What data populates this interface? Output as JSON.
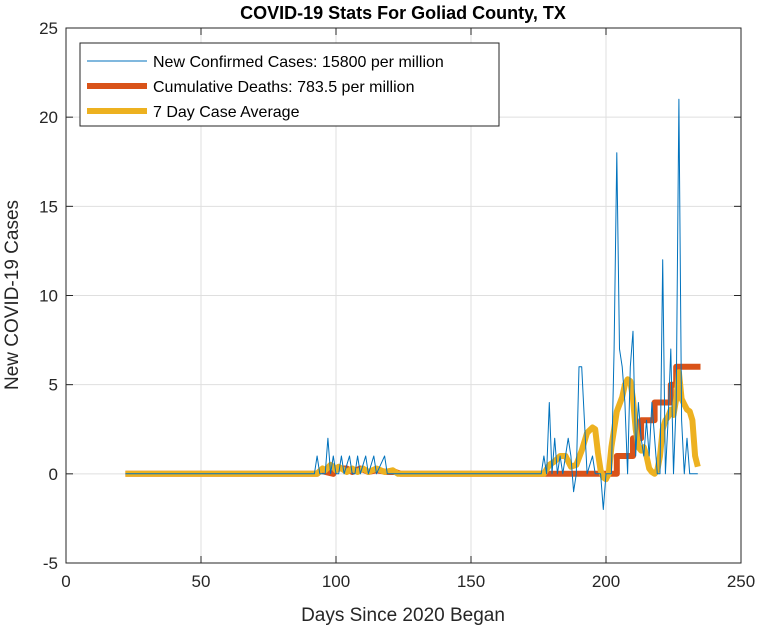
{
  "chart_data": {
    "type": "line",
    "title": "COVID-19 Stats For Goliad County, TX",
    "xlabel": "Days Since 2020 Began",
    "ylabel": "New COVID-19 Cases",
    "xlim": [
      0,
      250
    ],
    "ylim": [
      -5,
      25
    ],
    "xticks": [
      0,
      50,
      100,
      150,
      200,
      250
    ],
    "yticks": [
      -5,
      0,
      5,
      10,
      15,
      20,
      25
    ],
    "grid": true,
    "legend_position": "top-left",
    "series": [
      {
        "name": "New Confirmed Cases: 15800 per million",
        "color": "#0072bd",
        "style": "thin",
        "points": [
          [
            22,
            0
          ],
          [
            92,
            0
          ],
          [
            93,
            1
          ],
          [
            94,
            0
          ],
          [
            96,
            0
          ],
          [
            97,
            2
          ],
          [
            98,
            0
          ],
          [
            99,
            1
          ],
          [
            100,
            0
          ],
          [
            101,
            0
          ],
          [
            102,
            1
          ],
          [
            103,
            0
          ],
          [
            105,
            1
          ],
          [
            106,
            0
          ],
          [
            107,
            0
          ],
          [
            108,
            1
          ],
          [
            109,
            0
          ],
          [
            111,
            1
          ],
          [
            112,
            0
          ],
          [
            114,
            1
          ],
          [
            115,
            0
          ],
          [
            118,
            1
          ],
          [
            119,
            0
          ],
          [
            123,
            0
          ],
          [
            176,
            0
          ],
          [
            177,
            1
          ],
          [
            178,
            0
          ],
          [
            179,
            4
          ],
          [
            180,
            0
          ],
          [
            181,
            2
          ],
          [
            182,
            0
          ],
          [
            183,
            1
          ],
          [
            184,
            0
          ],
          [
            186,
            2
          ],
          [
            187,
            1
          ],
          [
            188,
            -1
          ],
          [
            189,
            0
          ],
          [
            190,
            6
          ],
          [
            191,
            6
          ],
          [
            192,
            3
          ],
          [
            193,
            0
          ],
          [
            195,
            1
          ],
          [
            196,
            0
          ],
          [
            197,
            0
          ],
          [
            198,
            0
          ],
          [
            199,
            -2
          ],
          [
            200,
            0
          ],
          [
            201,
            0
          ],
          [
            202,
            0
          ],
          [
            203,
            7
          ],
          [
            204,
            18
          ],
          [
            205,
            7
          ],
          [
            206,
            6
          ],
          [
            207,
            4
          ],
          [
            208,
            0
          ],
          [
            209,
            6
          ],
          [
            210,
            8
          ],
          [
            211,
            1
          ],
          [
            212,
            4
          ],
          [
            213,
            2
          ],
          [
            214,
            1
          ],
          [
            215,
            3
          ],
          [
            216,
            1
          ],
          [
            217,
            4
          ],
          [
            218,
            2
          ],
          [
            219,
            0
          ],
          [
            220,
            0
          ],
          [
            221,
            12
          ],
          [
            222,
            0
          ],
          [
            223,
            3
          ],
          [
            224,
            7
          ],
          [
            225,
            0
          ],
          [
            226,
            4
          ],
          [
            227,
            21
          ],
          [
            228,
            3
          ],
          [
            229,
            0
          ],
          [
            230,
            2
          ],
          [
            231,
            0
          ],
          [
            232,
            0
          ],
          [
            234,
            0
          ]
        ]
      },
      {
        "name": "Cumulative Deaths: 783.5 per million",
        "color": "#d95319",
        "style": "thick",
        "points": [
          [
            22,
            0
          ],
          [
            93,
            0
          ],
          [
            94,
            0.15
          ],
          [
            95,
            0.15
          ],
          [
            99,
            0
          ],
          [
            100,
            0.3
          ],
          [
            104,
            0.3
          ],
          [
            106,
            0.1
          ],
          [
            109,
            0.3
          ],
          [
            112,
            0.1
          ],
          [
            115,
            0.2
          ],
          [
            119,
            0.1
          ],
          [
            122,
            0.1
          ],
          [
            124,
            0
          ],
          [
            178,
            0
          ],
          [
            186,
            0
          ],
          [
            199,
            0
          ],
          [
            200,
            0
          ],
          [
            200,
            0
          ],
          [
            204,
            0
          ],
          [
            204,
            1
          ],
          [
            210,
            1
          ],
          [
            210,
            2
          ],
          [
            213,
            2
          ],
          [
            213,
            3
          ],
          [
            218,
            3
          ],
          [
            218,
            4
          ],
          [
            224,
            4
          ],
          [
            224,
            5
          ],
          [
            226,
            5
          ],
          [
            226,
            6
          ],
          [
            235,
            6
          ]
        ]
      },
      {
        "name": "7 Day Case Average",
        "color": "#edb120",
        "style": "thick",
        "points": [
          [
            22,
            0
          ],
          [
            93,
            0
          ],
          [
            95,
            0.3
          ],
          [
            96,
            0.2
          ],
          [
            98,
            0.5
          ],
          [
            99,
            0.4
          ],
          [
            100,
            0.2
          ],
          [
            101,
            0.4
          ],
          [
            102,
            0.3
          ],
          [
            104,
            0.1
          ],
          [
            106,
            0.3
          ],
          [
            108,
            0.1
          ],
          [
            110,
            0.3
          ],
          [
            112,
            0.1
          ],
          [
            115,
            0.3
          ],
          [
            118,
            0.1
          ],
          [
            121,
            0.2
          ],
          [
            123,
            0
          ],
          [
            177,
            0
          ],
          [
            179,
            0.5
          ],
          [
            181,
            0.7
          ],
          [
            183,
            1.0
          ],
          [
            185,
            1.0
          ],
          [
            187,
            0.4
          ],
          [
            189,
            0.5
          ],
          [
            191,
            1.3
          ],
          [
            193,
            2.3
          ],
          [
            195,
            2.6
          ],
          [
            196,
            2.5
          ],
          [
            197,
            1.2
          ],
          [
            198,
            0.2
          ],
          [
            199,
            -0.2
          ],
          [
            200,
            -0.3
          ],
          [
            201,
            0
          ],
          [
            202,
            1.5
          ],
          [
            203,
            2.5
          ],
          [
            204,
            3.5
          ],
          [
            206,
            4.3
          ],
          [
            207,
            5.0
          ],
          [
            208,
            5.3
          ],
          [
            209,
            5.2
          ],
          [
            210,
            4.2
          ],
          [
            211,
            2.5
          ],
          [
            212,
            1.5
          ],
          [
            213,
            1.3
          ],
          [
            214,
            1.5
          ],
          [
            215,
            1.0
          ],
          [
            216,
            0.3
          ],
          [
            217,
            0.1
          ],
          [
            218,
            0
          ],
          [
            219,
            0.2
          ],
          [
            220,
            1.0
          ],
          [
            221,
            2.5
          ],
          [
            222,
            3.0
          ],
          [
            223,
            3.2
          ],
          [
            224,
            3.6
          ],
          [
            225,
            3.3
          ],
          [
            226,
            4.2
          ],
          [
            227,
            5.7
          ],
          [
            228,
            4.2
          ],
          [
            229,
            3.9
          ],
          [
            230,
            3.6
          ],
          [
            231,
            3.5
          ],
          [
            232,
            3.0
          ],
          [
            233,
            1.0
          ],
          [
            234,
            0.4
          ]
        ]
      }
    ]
  }
}
